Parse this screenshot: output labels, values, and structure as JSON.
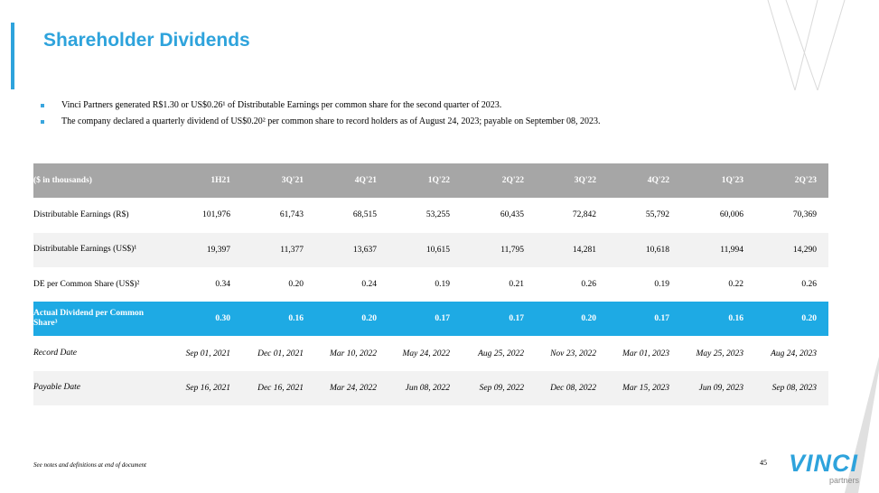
{
  "header": {
    "title": "Shareholder Dividends"
  },
  "bullets": [
    "Vinci Partners generated R$1.30 or US$0.26¹ of Distributable Earnings per common share for the second quarter of 2023.",
    "The company declared a quarterly dividend of US$0.20² per common share to record holders as of August 24, 2023; payable on September 08, 2023."
  ],
  "table": {
    "columns": [
      "($ in thousands)",
      "1H21",
      "3Q'21",
      "4Q'21",
      "1Q'22",
      "2Q'22",
      "3Q'22",
      "4Q'22",
      "1Q'23",
      "2Q'23"
    ],
    "rows": [
      [
        "Distributable Earnings (R$)",
        "101,976",
        "61,743",
        "68,515",
        "53,255",
        "60,435",
        "72,842",
        "55,792",
        "60,006",
        "70,369"
      ],
      [
        "Distributable Earnings (US$)¹",
        "19,397",
        "11,377",
        "13,637",
        "10,615",
        "11,795",
        "14,281",
        "10,618",
        "11,994",
        "14,290"
      ],
      [
        "DE per Common Share (US$)²",
        "0.34",
        "0.20",
        "0.24",
        "0.19",
        "0.21",
        "0.26",
        "0.19",
        "0.22",
        "0.26"
      ],
      [
        "Actual Dividend per Common Share³",
        "0.30",
        "0.16",
        "0.20",
        "0.17",
        "0.17",
        "0.20",
        "0.17",
        "0.16",
        "0.20"
      ],
      [
        "Record Date",
        "Sep 01, 2021",
        "Dec 01, 2021",
        "Mar 10, 2022",
        "May 24, 2022",
        "Aug 25, 2022",
        "Nov 23, 2022",
        "Mar 01, 2023",
        "May 25, 2023",
        "Aug 24, 2023"
      ],
      [
        "Payable Date",
        "Sep 16, 2021",
        "Dec 16, 2021",
        "Mar 24, 2022",
        "Jun 08, 2022",
        "Sep 09, 2022",
        "Dec 08, 2022",
        "Mar 15, 2023",
        "Jun 09, 2023",
        "Sep 08, 2023"
      ]
    ]
  },
  "footnote": "See notes and definitions at end of document",
  "page_number": "45",
  "logo": {
    "name": "VINCI",
    "tagline": "partners"
  }
}
